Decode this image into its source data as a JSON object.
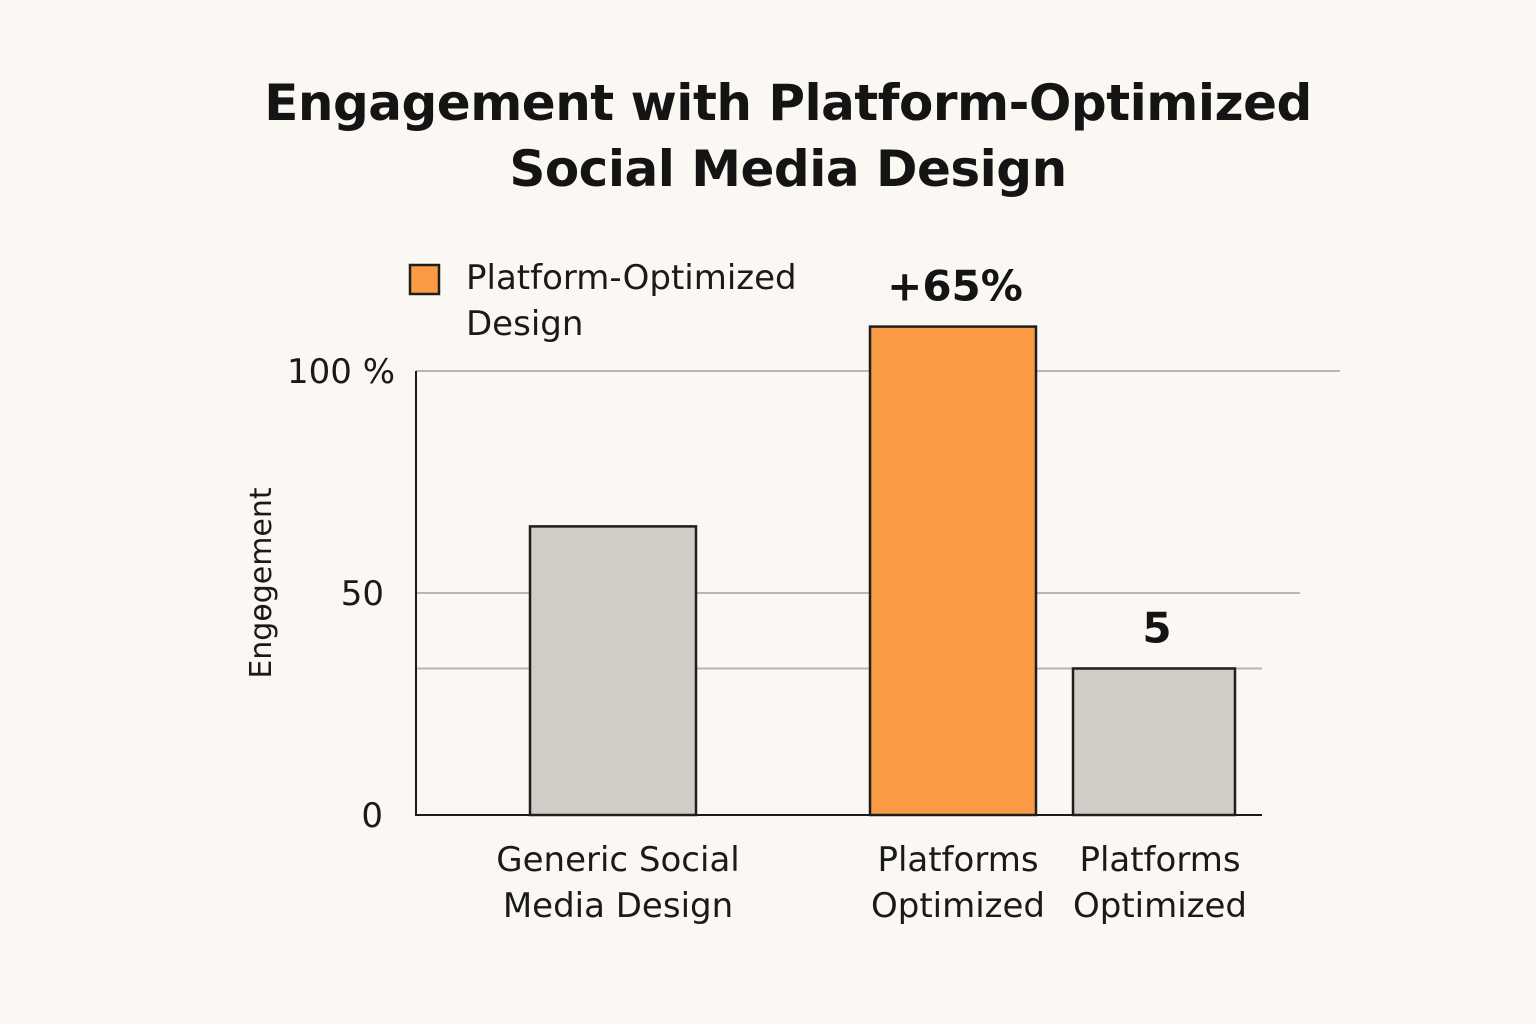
{
  "chart_data": {
    "type": "bar",
    "title_lines": [
      "Engagement with Platform-Optimized",
      "Social Media Design"
    ],
    "ylabel": "Engөgement",
    "xlabel": "",
    "ylim": [
      0,
      100
    ],
    "y_ticks": [
      {
        "value": 0,
        "label": "0"
      },
      {
        "value": 50,
        "label": "50"
      },
      {
        "value": 100,
        "label": "100 %"
      }
    ],
    "grid_values": [
      33,
      50,
      100
    ],
    "grid": true,
    "legend": {
      "position": "top-left",
      "lines": [
        "Platform-Optimized",
        "Design"
      ],
      "color": "#fb9a44"
    },
    "categories": [
      {
        "lines": [
          "Generic Social",
          "Media Design"
        ]
      },
      {
        "lines": [
          "Platforms",
          "Optimized"
        ]
      },
      {
        "lines": [
          "Platforms",
          "Optimized"
        ]
      }
    ],
    "values": [
      65,
      110,
      33
    ],
    "colors": [
      "#d0ccc6",
      "#fb9a44",
      "#d0ccc6"
    ],
    "data_labels": [
      "",
      "+65%",
      "5"
    ]
  }
}
